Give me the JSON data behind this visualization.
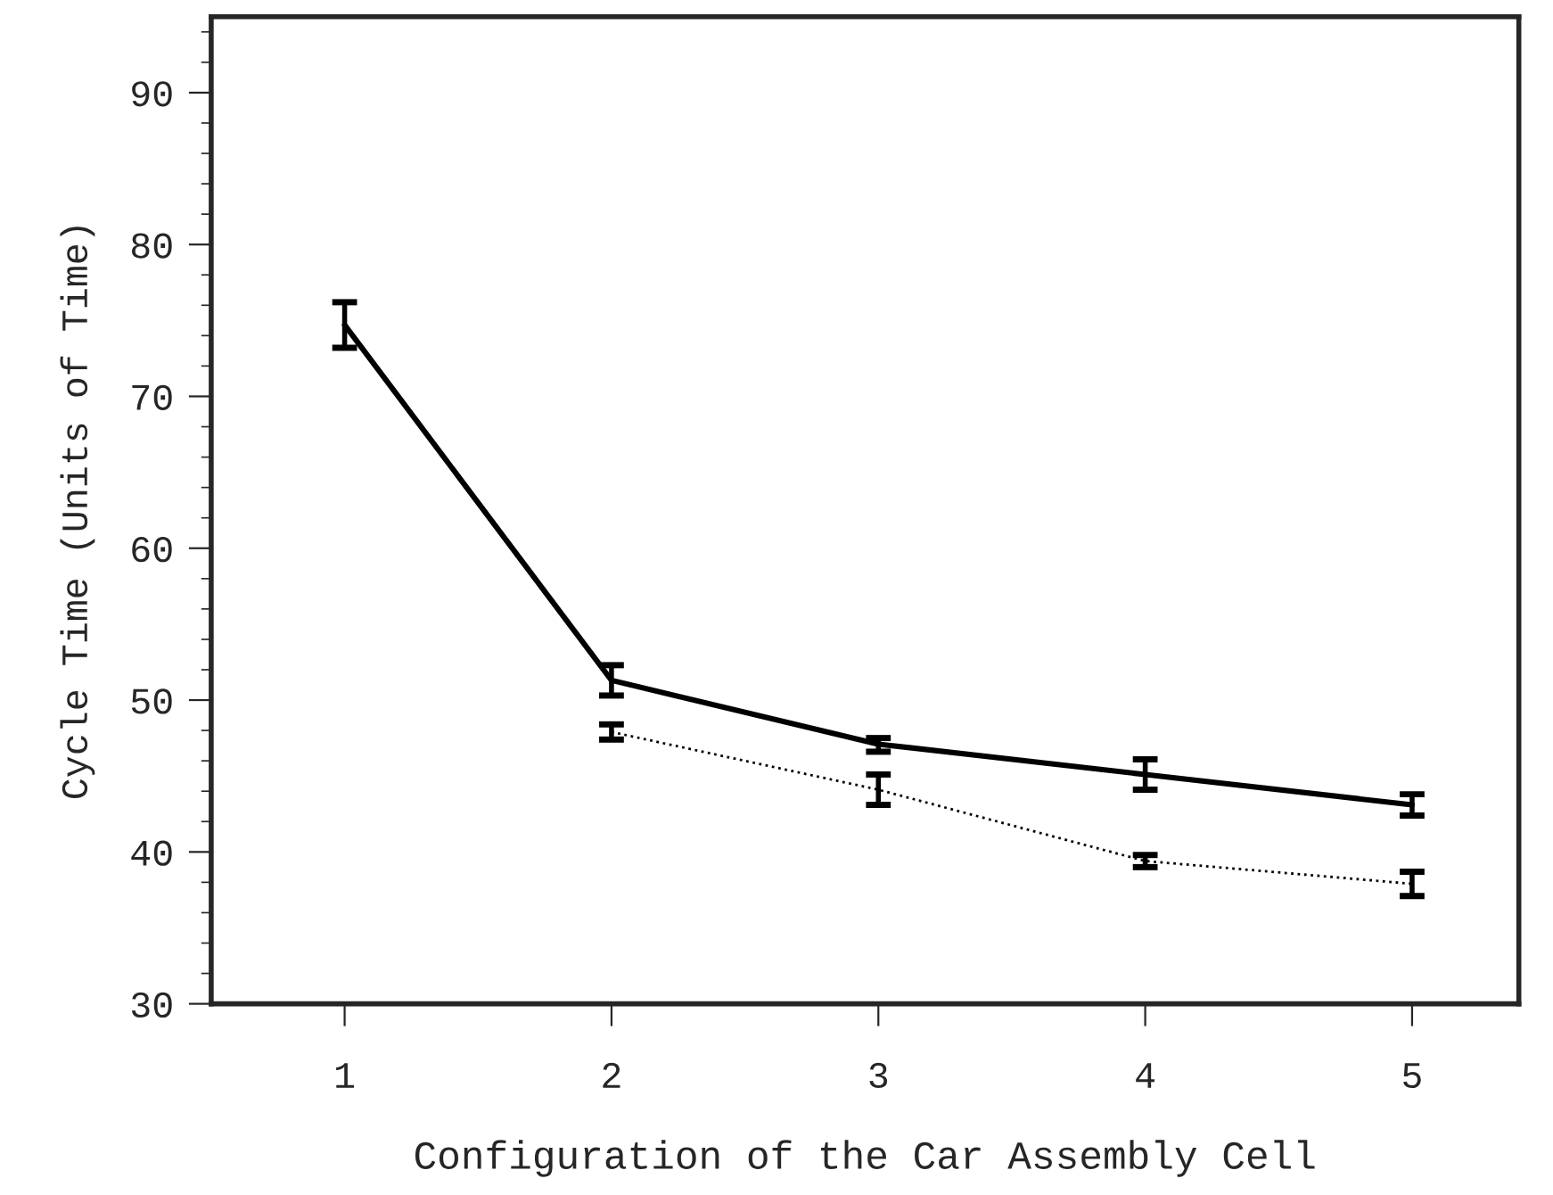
{
  "chart_data": {
    "type": "line",
    "xlabel": "Configuration of the Car Assembly Cell",
    "ylabel": "Cycle Time (Units of Time)",
    "x": [
      1,
      2,
      3,
      4,
      5
    ],
    "series": [
      {
        "color": "#000000",
        "line_style": "solid",
        "values": [
          74.7,
          51.3,
          47.1,
          45.1,
          43.1
        ],
        "errors": [
          [
            73.2,
            76.2
          ],
          [
            50.3,
            52.3
          ],
          [
            46.6,
            47.5
          ],
          [
            44.1,
            46.1
          ],
          [
            42.4,
            43.8
          ]
        ]
      },
      {
        "color": "#000000",
        "line_style": "dotted",
        "values": [
          null,
          47.9,
          44.1,
          39.4,
          37.9
        ],
        "errors": [
          null,
          [
            47.4,
            48.4
          ],
          [
            43.1,
            45.1
          ],
          [
            39.0,
            39.8
          ],
          [
            37.1,
            38.7
          ]
        ]
      }
    ],
    "xlim": [
      0.5,
      5.4
    ],
    "ylim": [
      30,
      95
    ],
    "xticks": [
      1,
      2,
      3,
      4,
      5
    ],
    "yticks": [
      30,
      40,
      50,
      60,
      70,
      80,
      90
    ],
    "grid": false,
    "legend": false,
    "marker": "none"
  }
}
